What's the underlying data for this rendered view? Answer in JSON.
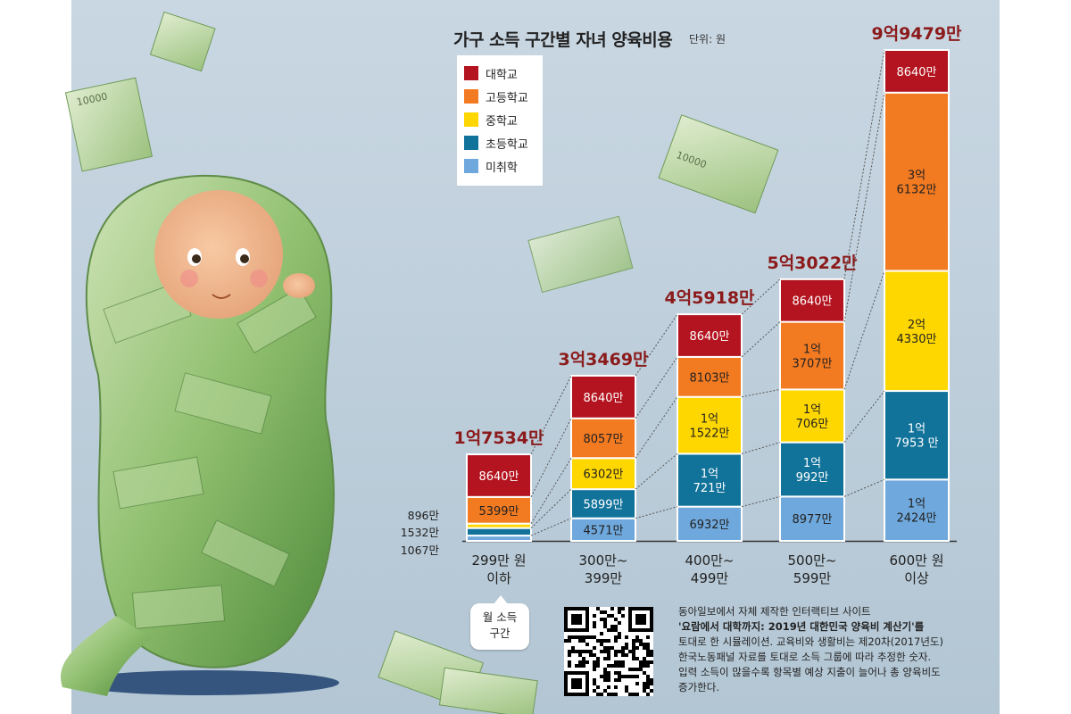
{
  "chart_data": {
    "type": "bar",
    "stacked": true,
    "title": "가구 소득 구간별 자녀 양육비용",
    "unit": "단위: 원",
    "categories": [
      "299만 원\n이하",
      "300만~\n399만",
      "400만~\n499만",
      "500만~\n599만",
      "600만 원\n이상"
    ],
    "totals": [
      17534,
      33469,
      45918,
      53022,
      99479
    ],
    "total_labels": [
      "1억7534만",
      "3억3469만",
      "4억5918만",
      "5억3022만",
      "9억9479만"
    ],
    "series": [
      {
        "name": "미취학",
        "color": "#6fa8dc",
        "values": [
          1067,
          4571,
          6932,
          8977,
          12424
        ],
        "labels": [
          "1067만",
          "4571만",
          "6932만",
          "8977만",
          "1억\n2424만"
        ]
      },
      {
        "name": "초등학교",
        "color": "#12739a",
        "values": [
          1532,
          5899,
          10721,
          10992,
          17953
        ],
        "labels": [
          "1532만",
          "5899만",
          "1억\n721만",
          "1억\n992만",
          "1억\n7953 만"
        ]
      },
      {
        "name": "중학교",
        "color": "#ffd700",
        "values": [
          896,
          6302,
          11522,
          10706,
          24330
        ],
        "labels": [
          "896만",
          "6302만",
          "1억\n1522만",
          "1억\n706만",
          "2억\n4330만"
        ]
      },
      {
        "name": "고등학교",
        "color": "#f27a21",
        "values": [
          5399,
          8057,
          8103,
          13707,
          36132
        ],
        "labels": [
          "5399만",
          "8057만",
          "8103만",
          "1억\n3707만",
          "3억\n6132만"
        ]
      },
      {
        "name": "대학교",
        "color": "#b3141f",
        "values": [
          8640,
          8640,
          8640,
          8640,
          8640
        ],
        "labels": [
          "8640만",
          "8640만",
          "8640만",
          "8640만",
          "8640만"
        ]
      }
    ],
    "legend_order": [
      "대학교",
      "고등학교",
      "중학교",
      "초등학교",
      "미취학"
    ],
    "legend_position": "top-left",
    "grid": false
  },
  "axis_note": "월 소득\n구간",
  "note": {
    "line1": "동아일보에서 자체 제작한 인터랙티브 사이트",
    "line2": "'요람에서 대학까지: 2019년 대한민국 양육비 계산기'를",
    "line3": "토대로 한 시뮬레이션. 교육비와 생활비는 제20차(2017년도)",
    "line4": "한국노동패널 자료를 토대로 소득 그룹에 따라 추정한 숫자.",
    "line5": "입력 소득이 많을수록 항목별 예상 지출이 늘어나 총 양육비도",
    "line6": "증가한다."
  },
  "illustration": {
    "subject": "baby-wrapped-in-money",
    "banknote_text": "10000"
  },
  "qr_code": {
    "icon": "qr-code-icon"
  }
}
